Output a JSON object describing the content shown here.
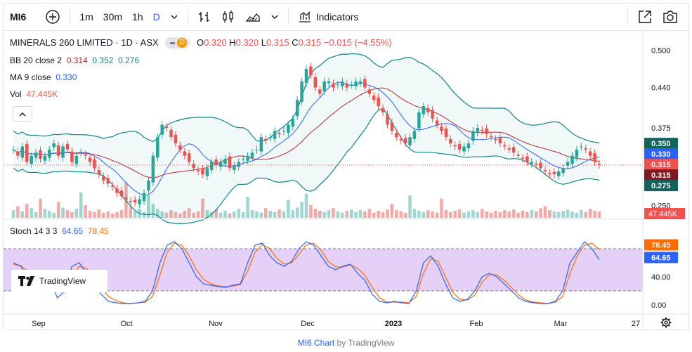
{
  "toolbar": {
    "symbol": "MI6",
    "intervals": [
      "1m",
      "30m",
      "1h",
      "D"
    ],
    "active_interval": "D",
    "indicators_label": "Indicators"
  },
  "legend": {
    "name": "MINERALS 260 LIMITED · 1D · ASX",
    "badge": "D",
    "o_label": "O",
    "o": "0.320",
    "h_label": "H",
    "h": "0.320",
    "l_label": "L",
    "l": "0.315",
    "c_label": "C",
    "c": "0.315",
    "change": "−0.015 (−4.55%)",
    "bb_label": "BB 20 close 2",
    "bb_basis": "0.314",
    "bb_upper": "0.352",
    "bb_lower": "0.276",
    "ma_label": "MA 9 close",
    "ma": "0.330",
    "vol_label": "Vol",
    "vol": "47.445K",
    "stoch_label": "Stoch 14 3 3",
    "stoch_k": "64.65",
    "stoch_d": "78.45"
  },
  "colors": {
    "up": "#26a69a",
    "down": "#ef5350",
    "bb_band": "#138484",
    "bb_basis": "#b22833",
    "ma": "#2962ff",
    "stoch_k": "#2962ff",
    "stoch_d": "#ff6d00",
    "stoch_fill": "#e1c8f7"
  },
  "axis": {
    "price_ticks": [
      "0.500",
      "0.440",
      "0.375",
      "0.250"
    ],
    "stoch_ticks": [
      "40.00",
      "0.00"
    ],
    "time_labels": [
      "Sep",
      "Oct",
      "Nov",
      "Dec",
      "2023",
      "Feb",
      "Mar",
      "27"
    ]
  },
  "price_labels": {
    "bb_upper": "0.350",
    "ma": "0.330",
    "close": "0.315",
    "bb_basis": "0.315",
    "bb_lower": "0.275",
    "volume": "47.445K",
    "stoch_d": "78.45",
    "stoch_k": "64.65"
  },
  "watermark": "TradingView",
  "footer": {
    "chart": "MI6 Chart",
    "by": "by TradingView"
  },
  "chart_data": [
    {
      "type": "candlestick",
      "title": "MINERALS 260 LIMITED · 1D · ASX",
      "x_range": [
        "Sep",
        "Mar"
      ],
      "ylim": [
        0.23,
        0.52
      ],
      "price_ticks": [
        0.25,
        0.375,
        0.44,
        0.5
      ],
      "last": {
        "open": 0.32,
        "high": 0.32,
        "low": 0.315,
        "close": 0.315,
        "change": -0.015,
        "change_pct": -4.55
      },
      "closes": [
        0.34,
        0.33,
        0.345,
        0.32,
        0.33,
        0.335,
        0.325,
        0.33,
        0.34,
        0.35,
        0.33,
        0.345,
        0.34,
        0.32,
        0.33,
        0.335,
        0.33,
        0.32,
        0.31,
        0.3,
        0.29,
        0.285,
        0.28,
        0.27,
        0.265,
        0.26,
        0.255,
        0.255,
        0.26,
        0.27,
        0.29,
        0.33,
        0.36,
        0.38,
        0.375,
        0.36,
        0.35,
        0.34,
        0.33,
        0.32,
        0.31,
        0.305,
        0.3,
        0.31,
        0.32,
        0.315,
        0.32,
        0.325,
        0.31,
        0.315,
        0.32,
        0.325,
        0.33,
        0.335,
        0.34,
        0.36,
        0.355,
        0.36,
        0.37,
        0.365,
        0.37,
        0.38,
        0.39,
        0.42,
        0.45,
        0.47,
        0.46,
        0.44,
        0.43,
        0.45,
        0.45,
        0.44,
        0.445,
        0.45,
        0.44,
        0.445,
        0.45,
        0.45,
        0.44,
        0.43,
        0.42,
        0.41,
        0.4,
        0.38,
        0.37,
        0.36,
        0.355,
        0.35,
        0.36,
        0.37,
        0.4,
        0.41,
        0.4,
        0.39,
        0.38,
        0.37,
        0.36,
        0.35,
        0.345,
        0.34,
        0.345,
        0.35,
        0.37,
        0.375,
        0.37,
        0.365,
        0.36,
        0.355,
        0.35,
        0.345,
        0.34,
        0.335,
        0.33,
        0.325,
        0.32,
        0.32,
        0.315,
        0.31,
        0.305,
        0.3,
        0.3,
        0.305,
        0.31,
        0.32,
        0.33,
        0.34,
        0.345,
        0.34,
        0.33,
        0.32,
        0.315
      ],
      "series": [
        {
          "name": "BB 20 close 2",
          "basis": 0.314,
          "upper": 0.352,
          "lower": 0.276
        },
        {
          "name": "MA 9 close",
          "value": 0.33
        }
      ]
    },
    {
      "type": "bar",
      "title": "Vol",
      "last_value": "47.445K",
      "values": [
        12,
        18,
        10,
        22,
        15,
        9,
        30,
        14,
        11,
        8,
        25,
        16,
        12,
        9,
        14,
        40,
        20,
        11,
        9,
        13,
        8,
        10,
        7,
        9,
        12,
        55,
        18,
        10,
        14,
        9,
        35,
        22,
        14,
        10,
        8,
        12,
        9,
        7,
        11,
        15,
        8,
        10,
        30,
        12,
        9,
        13,
        8,
        11,
        7,
        10,
        14,
        9,
        33,
        12,
        10,
        8,
        15,
        11,
        9,
        13,
        10,
        28,
        12,
        16,
        25,
        38,
        20,
        14,
        11,
        9,
        12,
        15,
        10,
        8,
        11,
        13,
        9,
        12,
        10,
        14,
        8,
        11,
        9,
        13,
        22,
        12,
        10,
        8,
        35,
        14,
        11,
        9,
        12,
        10,
        8,
        30,
        12,
        9,
        11,
        13,
        8,
        10,
        12,
        9,
        14,
        10,
        8,
        11,
        9,
        12,
        10,
        13,
        8,
        11,
        9,
        12,
        10,
        15,
        18,
        12,
        10,
        9,
        11,
        13,
        10,
        8,
        12,
        9,
        14,
        11,
        10
      ]
    },
    {
      "type": "line",
      "title": "Stoch 14 3 3",
      "ylim": [
        0,
        100
      ],
      "bands": [
        20,
        80
      ],
      "series": [
        {
          "name": "%K",
          "last": 64.65,
          "values": [
            60,
            55,
            40,
            30,
            45,
            35,
            10,
            20,
            55,
            60,
            45,
            30,
            15,
            5,
            3,
            2,
            2,
            3,
            5,
            20,
            60,
            85,
            90,
            80,
            60,
            40,
            30,
            28,
            26,
            25,
            28,
            30,
            60,
            85,
            88,
            70,
            60,
            55,
            62,
            80,
            90,
            85,
            70,
            55,
            50,
            55,
            58,
            45,
            35,
            15,
            5,
            3,
            5,
            3,
            2,
            20,
            60,
            70,
            55,
            30,
            10,
            5,
            8,
            20,
            40,
            45,
            40,
            30,
            20,
            10,
            5,
            3,
            2,
            2,
            5,
            20,
            60,
            75,
            90,
            80,
            64.65
          ]
        },
        {
          "name": "%D",
          "last": 78.45,
          "values": [
            58,
            56,
            48,
            38,
            40,
            38,
            22,
            18,
            40,
            55,
            52,
            40,
            25,
            12,
            6,
            3,
            2,
            3,
            4,
            12,
            42,
            75,
            88,
            85,
            70,
            50,
            36,
            30,
            27,
            26,
            27,
            29,
            48,
            75,
            86,
            80,
            66,
            58,
            60,
            72,
            86,
            88,
            78,
            62,
            54,
            54,
            57,
            52,
            42,
            25,
            10,
            4,
            4,
            4,
            3,
            12,
            45,
            66,
            62,
            40,
            18,
            8,
            7,
            14,
            32,
            43,
            43,
            35,
            25,
            14,
            7,
            4,
            3,
            2,
            4,
            12,
            45,
            70,
            85,
            88,
            78.45
          ]
        }
      ]
    }
  ]
}
